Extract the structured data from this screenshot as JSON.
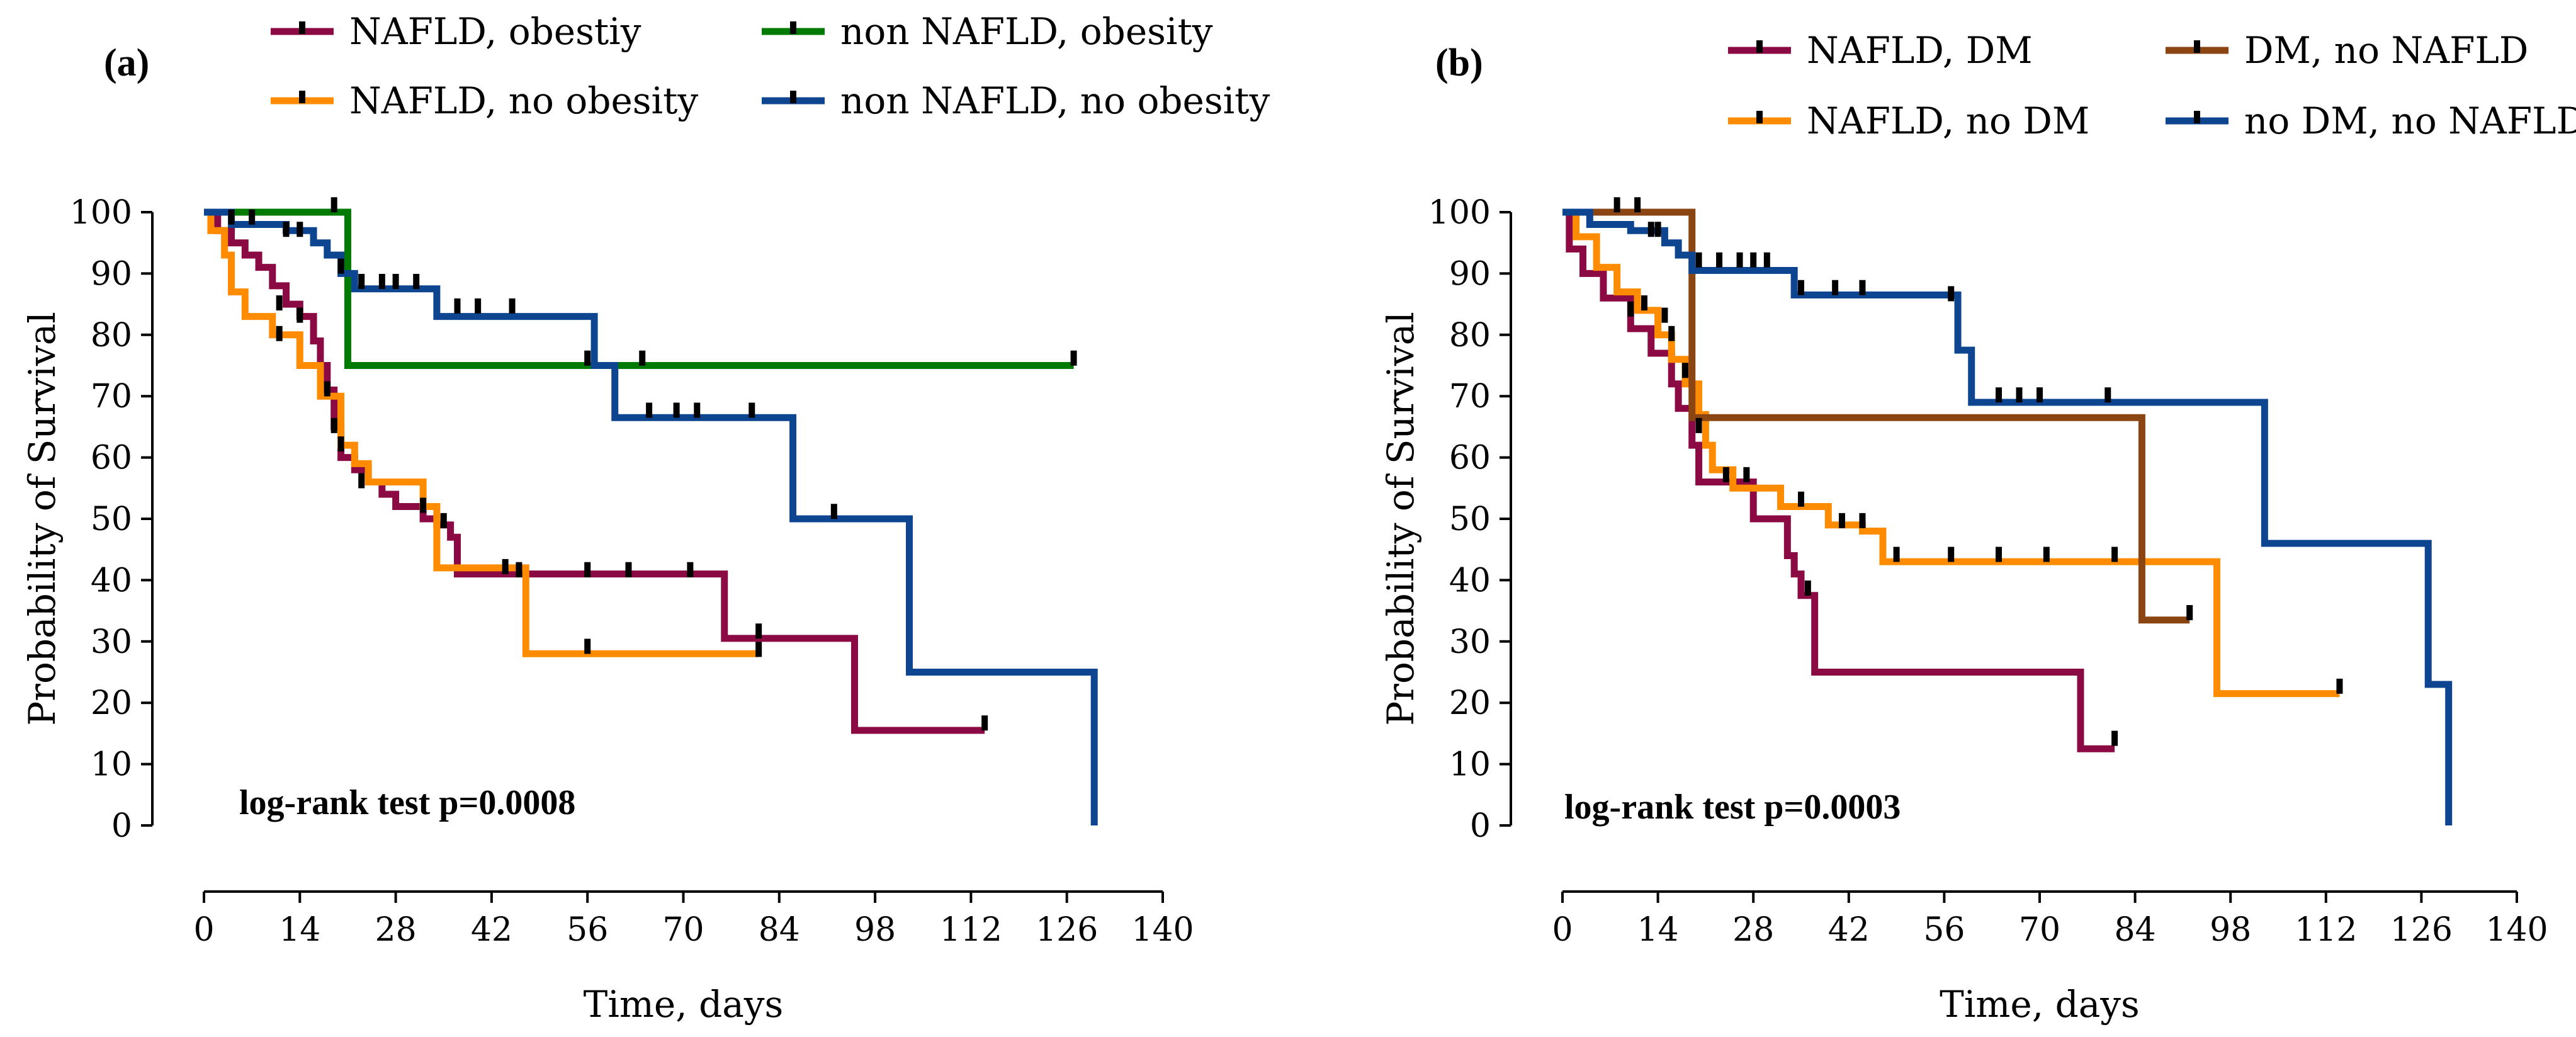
{
  "chart_data": [
    {
      "type": "line",
      "subtype": "kaplan-meier",
      "panel_label": "(a)",
      "xlabel": "Time, days",
      "ylabel": "Probability of Survival",
      "xlim": [
        0,
        140
      ],
      "ylim": [
        0,
        100
      ],
      "xticks": [
        0,
        14,
        28,
        42,
        56,
        70,
        84,
        98,
        112,
        126,
        140
      ],
      "yticks": [
        0,
        10,
        20,
        30,
        40,
        50,
        60,
        70,
        80,
        90,
        100
      ],
      "annotation": "log-rank test p=0.0008",
      "legend_position": "top",
      "series": [
        {
          "name": "NAFLD, obestiy",
          "color": "#8b0a43",
          "steps": [
            [
              0,
              100
            ],
            [
              2,
              97
            ],
            [
              4,
              95
            ],
            [
              6,
              93
            ],
            [
              8,
              91
            ],
            [
              10,
              88
            ],
            [
              12,
              85
            ],
            [
              14,
              83
            ],
            [
              16,
              79
            ],
            [
              17,
              75
            ],
            [
              18,
              71
            ],
            [
              19,
              65
            ],
            [
              20,
              60
            ],
            [
              22,
              58
            ],
            [
              24,
              56
            ],
            [
              26,
              54
            ],
            [
              28,
              52
            ],
            [
              32,
              50
            ],
            [
              34,
              49
            ],
            [
              36,
              47
            ],
            [
              37,
              41
            ],
            [
              76,
              41
            ],
            [
              76,
              30.5
            ],
            [
              95,
              30.5
            ],
            [
              95,
              15.5
            ],
            [
              114,
              15.5
            ]
          ],
          "censored": [
            [
              11,
              85
            ],
            [
              14,
              83
            ],
            [
              18,
              71
            ],
            [
              19,
              65
            ],
            [
              35,
              49.5
            ],
            [
              46,
              41.5
            ],
            [
              56,
              41.5
            ],
            [
              62,
              41.5
            ],
            [
              71,
              41.5
            ],
            [
              81,
              31.5
            ],
            [
              114,
              16.5
            ]
          ]
        },
        {
          "name": "NAFLD, no obesity",
          "color": "#ff8c00",
          "steps": [
            [
              0,
              100
            ],
            [
              1,
              97
            ],
            [
              3,
              93
            ],
            [
              4,
              87
            ],
            [
              6,
              83
            ],
            [
              10,
              80
            ],
            [
              14,
              75
            ],
            [
              17,
              70
            ],
            [
              20,
              62
            ],
            [
              22,
              59
            ],
            [
              24,
              56
            ],
            [
              32,
              52
            ],
            [
              34,
              42
            ],
            [
              47,
              42
            ],
            [
              47,
              28
            ],
            [
              81,
              28
            ]
          ],
          "censored": [
            [
              11,
              80
            ],
            [
              20,
              62
            ],
            [
              23,
              56
            ],
            [
              32,
              52
            ],
            [
              44,
              42
            ],
            [
              56,
              29
            ],
            [
              81,
              28.5
            ]
          ]
        },
        {
          "name": "non NAFLD, obesity",
          "color": "#007a00",
          "steps": [
            [
              0,
              100
            ],
            [
              21,
              100
            ],
            [
              21,
              75
            ],
            [
              127,
              75
            ]
          ],
          "censored": [
            [
              19,
              101
            ],
            [
              127,
              76
            ]
          ]
        },
        {
          "name": "non NAFLD, no obesity",
          "color": "#0d4590",
          "steps": [
            [
              0,
              100
            ],
            [
              4,
              98
            ],
            [
              12,
              97
            ],
            [
              16,
              95
            ],
            [
              18,
              93
            ],
            [
              20,
              90
            ],
            [
              22,
              87.5
            ],
            [
              32,
              87.5
            ],
            [
              34,
              83
            ],
            [
              57,
              83
            ],
            [
              57,
              75
            ],
            [
              60,
              75
            ],
            [
              60,
              66.5
            ],
            [
              86,
              66.5
            ],
            [
              86,
              50
            ],
            [
              103,
              50
            ],
            [
              103,
              25
            ],
            [
              130,
              25
            ],
            [
              130,
              0
            ]
          ],
          "censored": [
            [
              4,
              99
            ],
            [
              7,
              99
            ],
            [
              12,
              97
            ],
            [
              14,
              97
            ],
            [
              20,
              91
            ],
            [
              23,
              88.5
            ],
            [
              26,
              88.5
            ],
            [
              28,
              88.5
            ],
            [
              31,
              88.5
            ],
            [
              37,
              84.5
            ],
            [
              40,
              84.5
            ],
            [
              45,
              84.5
            ],
            [
              56,
              76
            ],
            [
              64,
              76
            ],
            [
              65,
              67.5
            ],
            [
              69,
              67.5
            ],
            [
              72,
              67.5
            ],
            [
              80,
              67.5
            ],
            [
              92,
              51
            ]
          ]
        }
      ]
    },
    {
      "type": "line",
      "subtype": "kaplan-meier",
      "panel_label": "(b)",
      "xlabel": "Time, days",
      "ylabel": "Probability of Survival",
      "xlim": [
        0,
        140
      ],
      "ylim": [
        0,
        100
      ],
      "xticks": [
        0,
        14,
        28,
        42,
        56,
        70,
        84,
        98,
        112,
        126,
        140
      ],
      "yticks": [
        0,
        10,
        20,
        30,
        40,
        50,
        60,
        70,
        80,
        90,
        100
      ],
      "annotation": "log-rank test p=0.0003",
      "legend_position": "top",
      "series": [
        {
          "name": "NAFLD, DM",
          "color": "#8b0a43",
          "steps": [
            [
              0,
              100
            ],
            [
              1,
              94
            ],
            [
              3,
              90
            ],
            [
              6,
              86
            ],
            [
              10,
              81
            ],
            [
              13,
              77
            ],
            [
              16,
              72
            ],
            [
              17,
              68
            ],
            [
              19,
              62
            ],
            [
              20,
              56
            ],
            [
              26,
              56
            ],
            [
              28,
              50
            ],
            [
              32,
              50
            ],
            [
              33,
              44
            ],
            [
              34,
              41
            ],
            [
              35,
              37.5
            ],
            [
              37,
              37.5
            ],
            [
              37,
              25
            ],
            [
              76,
              25
            ],
            [
              76,
              12.5
            ],
            [
              81,
              12.5
            ]
          ],
          "censored": [
            [
              12,
              85
            ],
            [
              15,
              83
            ],
            [
              18,
              74
            ],
            [
              20,
              65
            ],
            [
              24,
              57
            ],
            [
              27,
              57
            ],
            [
              36,
              38.5
            ],
            [
              81,
              14
            ]
          ]
        },
        {
          "name": "NAFLD, no DM",
          "color": "#ff8c00",
          "steps": [
            [
              0,
              100
            ],
            [
              2,
              96
            ],
            [
              5,
              91
            ],
            [
              8,
              87
            ],
            [
              11,
              84
            ],
            [
              14,
              80
            ],
            [
              16,
              76
            ],
            [
              18,
              72
            ],
            [
              20,
              67
            ],
            [
              21,
              62
            ],
            [
              22,
              58
            ],
            [
              25,
              55
            ],
            [
              31,
              55
            ],
            [
              32,
              52
            ],
            [
              37,
              52
            ],
            [
              39,
              49
            ],
            [
              44,
              49
            ],
            [
              44,
              48
            ],
            [
              47,
              48
            ],
            [
              47,
              43
            ],
            [
              96,
              43
            ],
            [
              96,
              21.5
            ],
            [
              114,
              21.5
            ]
          ],
          "censored": [
            [
              10,
              84
            ],
            [
              16,
              80
            ],
            [
              35,
              53
            ],
            [
              41,
              49.5
            ],
            [
              44,
              49.5
            ],
            [
              49,
              44
            ],
            [
              57,
              44
            ],
            [
              64,
              44
            ],
            [
              71,
              44
            ],
            [
              81,
              44
            ],
            [
              114,
              22.5
            ]
          ]
        },
        {
          "name": "DM, no NAFLD",
          "color": "#8b4513",
          "steps": [
            [
              0,
              100
            ],
            [
              19,
              100
            ],
            [
              19,
              66.5
            ],
            [
              85,
              66.5
            ],
            [
              85,
              33.5
            ],
            [
              92,
              33.5
            ]
          ],
          "censored": [
            [
              92,
              34.5
            ]
          ]
        },
        {
          "name": "no DM, no NAFLD",
          "color": "#0d4590",
          "steps": [
            [
              0,
              100
            ],
            [
              4,
              98
            ],
            [
              10,
              97
            ],
            [
              15,
              95
            ],
            [
              17,
              93
            ],
            [
              19,
              90.5
            ],
            [
              34,
              90.5
            ],
            [
              34,
              86.5
            ],
            [
              58,
              86.5
            ],
            [
              58,
              77.5
            ],
            [
              60,
              77.5
            ],
            [
              60,
              69
            ],
            [
              103,
              69
            ],
            [
              103,
              46
            ],
            [
              127,
              46
            ],
            [
              127,
              23
            ],
            [
              130,
              23
            ],
            [
              130,
              0
            ]
          ],
          "censored": [
            [
              8,
              101
            ],
            [
              11,
              101
            ],
            [
              13,
              97
            ],
            [
              14,
              97
            ],
            [
              20,
              92
            ],
            [
              23,
              92
            ],
            [
              26,
              92
            ],
            [
              28,
              92
            ],
            [
              30,
              92
            ],
            [
              35,
              87.5
            ],
            [
              40,
              87.5
            ],
            [
              44,
              87.5
            ],
            [
              57,
              86.5
            ],
            [
              64,
              70
            ],
            [
              67,
              70
            ],
            [
              70,
              70
            ],
            [
              80,
              70
            ]
          ]
        }
      ]
    }
  ]
}
